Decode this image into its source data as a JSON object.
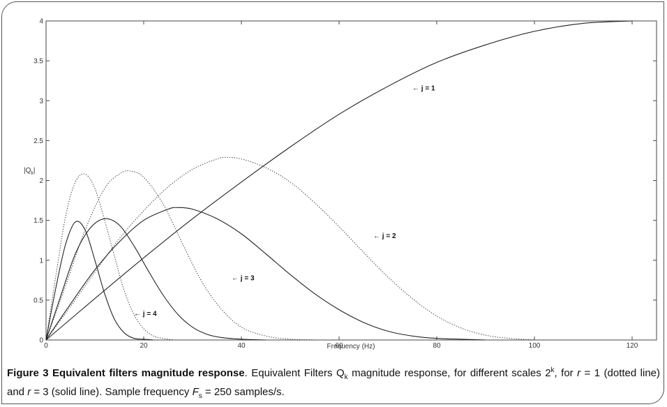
{
  "chart_data": {
    "type": "line",
    "title": "",
    "xlabel": "Frequency (Hz)",
    "ylabel_main": "|Q",
    "ylabel_sub": "k",
    "ylabel_close": "|",
    "xlim": [
      0,
      125
    ],
    "ylim": [
      0,
      4
    ],
    "x_ticks": [
      "0",
      "20",
      "40",
      "60",
      "80",
      "100",
      "120"
    ],
    "y_ticks": [
      "0",
      "0.5",
      "1",
      "1.5",
      "2",
      "2.5",
      "3",
      "3.5",
      "4"
    ],
    "grid": false,
    "series": [
      {
        "style": "solid",
        "x": [
          0,
          10,
          20,
          30,
          40,
          50,
          60,
          70,
          80,
          90,
          100,
          110,
          120
        ],
        "y": [
          0,
          0.52,
          1.03,
          1.52,
          1.98,
          2.42,
          2.83,
          3.18,
          3.48,
          3.7,
          3.87,
          3.97,
          4.0
        ]
      },
      {
        "style": "dotted",
        "x": [
          0,
          5,
          10,
          15,
          20,
          25,
          30,
          35,
          37,
          40,
          45,
          50,
          55,
          60,
          65,
          70,
          75,
          80,
          85,
          90,
          95,
          100
        ],
        "y": [
          0,
          0.42,
          0.85,
          1.27,
          1.62,
          1.92,
          2.14,
          2.27,
          2.29,
          2.27,
          2.16,
          1.98,
          1.72,
          1.42,
          1.1,
          0.79,
          0.52,
          0.3,
          0.15,
          0.06,
          0.02,
          0
        ]
      },
      {
        "style": "solid",
        "x": [
          0,
          5,
          10,
          15,
          20,
          25,
          27,
          30,
          35,
          40,
          45,
          50,
          55,
          60,
          65,
          70,
          75,
          80,
          85,
          90
        ],
        "y": [
          0,
          0.45,
          0.88,
          1.23,
          1.5,
          1.64,
          1.66,
          1.64,
          1.52,
          1.33,
          1.08,
          0.82,
          0.58,
          0.38,
          0.22,
          0.11,
          0.05,
          0.02,
          0.01,
          0
        ]
      },
      {
        "style": "dotted",
        "x": [
          0,
          4,
          8,
          12,
          15,
          17,
          20,
          24,
          28,
          32,
          36,
          40,
          45,
          50,
          55
        ],
        "y": [
          0,
          0.68,
          1.38,
          1.9,
          2.08,
          2.12,
          2.04,
          1.7,
          1.2,
          0.72,
          0.38,
          0.16,
          0.05,
          0.01,
          0
        ]
      },
      {
        "style": "solid",
        "x": [
          0,
          3,
          6,
          9,
          12,
          15,
          18,
          21,
          24,
          27,
          30,
          33,
          36,
          40,
          45
        ],
        "y": [
          0,
          0.55,
          1.08,
          1.4,
          1.52,
          1.44,
          1.18,
          0.86,
          0.56,
          0.32,
          0.16,
          0.07,
          0.03,
          0.01,
          0
        ]
      },
      {
        "style": "dotted",
        "x": [
          0,
          2,
          4,
          6,
          8,
          10,
          12,
          14,
          16,
          18,
          20,
          22,
          24,
          26
        ],
        "y": [
          0,
          0.8,
          1.55,
          1.98,
          2.08,
          1.9,
          1.5,
          1.05,
          0.62,
          0.32,
          0.14,
          0.05,
          0.02,
          0
        ]
      },
      {
        "style": "solid",
        "x": [
          0,
          2,
          4,
          6,
          8,
          10,
          12,
          14,
          16,
          18,
          20,
          22
        ],
        "y": [
          0,
          0.65,
          1.2,
          1.48,
          1.38,
          1.0,
          0.58,
          0.26,
          0.09,
          0.02,
          0.01,
          0
        ]
      }
    ],
    "annotations": [
      {
        "text": "← j = 1",
        "x": 75,
        "y": 3.13
      },
      {
        "text": "← j = 2",
        "x": 67,
        "y": 1.28
      },
      {
        "text": "← j = 3",
        "x": 38,
        "y": 0.75
      },
      {
        "text": "← j = 4",
        "x": 18,
        "y": 0.3
      }
    ]
  },
  "caption": {
    "figure_label": "Figure 3 Equivalent filters magnitude response",
    "line1_a": ". Equivalent Filters Q",
    "line1_sub": "k",
    "line1_b": " magnitude response, for different",
    "line2_a": "scales 2",
    "line2_sup": "k",
    "line2_b": ", for ",
    "r_var": "r",
    "line2_c": " = 1 (dotted line) and ",
    "line2_d": " = 3 (solid line). Sample frequency ",
    "fs_var": "F",
    "fs_sub": "s",
    "line2_e": " = 250 samples/s."
  }
}
